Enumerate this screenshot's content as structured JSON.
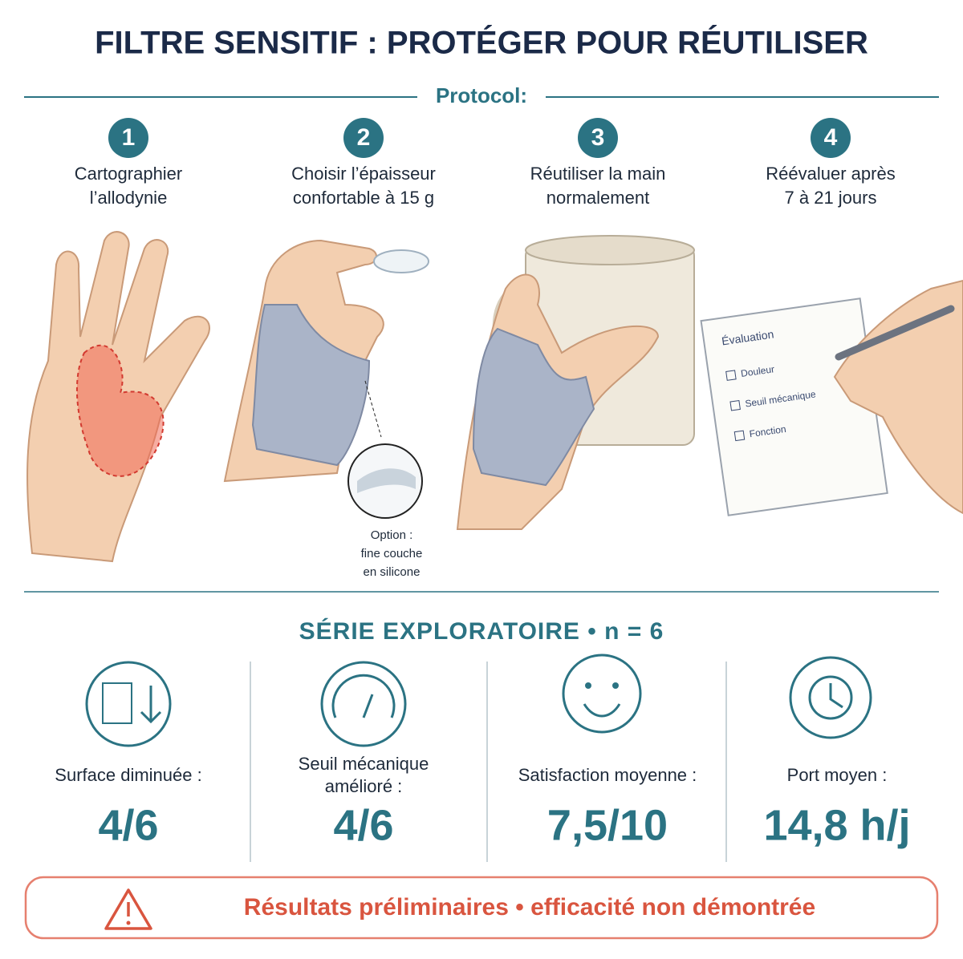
{
  "header": {
    "title": "FILTRE SENSITIF : PROTÉGER POUR RÉUTILISER",
    "subtitle": "Protocol:"
  },
  "steps": [
    {
      "number": "1",
      "label": [
        "Cartographier",
        "l’allodynie"
      ]
    },
    {
      "number": "2",
      "label": [
        "Choisir l’épaisseur",
        "confortable à 15 g"
      ]
    },
    {
      "number": "3",
      "label": [
        "Réutiliser la main",
        "normalement"
      ]
    },
    {
      "number": "4",
      "label": [
        "Réévaluer après",
        "7 à 21 jours"
      ]
    }
  ],
  "illustration": {
    "option": [
      "Option :",
      "fine couche",
      "en silicone"
    ],
    "notepad": {
      "title": "Évaluation",
      "items": [
        "Douleur",
        "Seuil mécanique",
        "Fonction"
      ]
    }
  },
  "results": {
    "title": "SÉRIE EXPLORATOIRE • n = 6",
    "stats": [
      {
        "label": [
          "Surface diminuée :"
        ],
        "value": "4/6"
      },
      {
        "label": [
          "Seuil mécanique",
          "amélioré :"
        ],
        "value": "4/6"
      },
      {
        "label": [
          "Satisfaction moyenne :"
        ],
        "value": "7,5/10"
      },
      {
        "label": [
          "Port moyen :"
        ],
        "value": "14,8 h/j"
      }
    ]
  },
  "warning": "Résultats préliminaires • efficacité non démontrée"
}
